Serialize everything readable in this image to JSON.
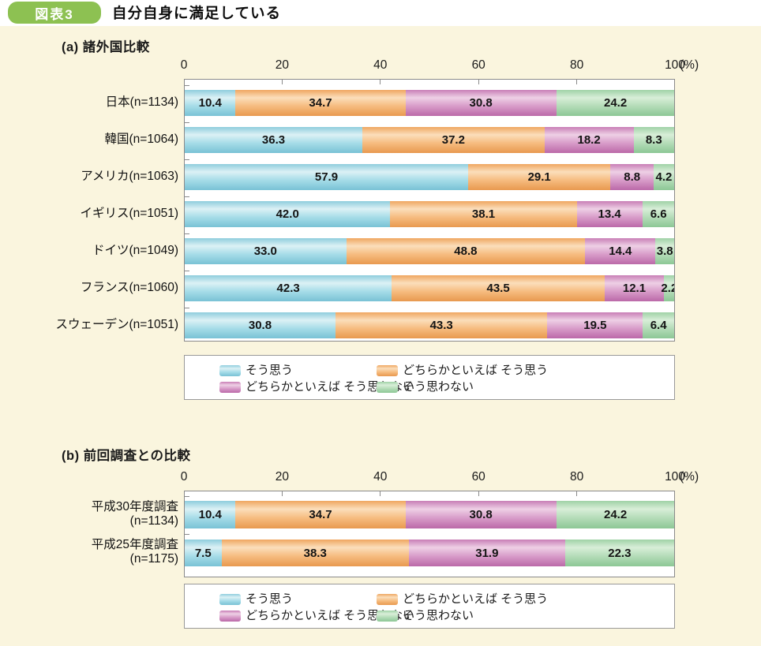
{
  "header": {
    "badge": "図表3",
    "title": "自分自身に満足している"
  },
  "colors": {
    "background": "#faf5de",
    "badge_green": "#8dc152",
    "plot_border": "#8a8a8a",
    "series": [
      {
        "label": "そう思う",
        "top": "#8ecddd",
        "light": "#dcf1f5",
        "base": "#a6dce8",
        "dark": "#79c2d5"
      },
      {
        "label": "どちらかといえば そう思う",
        "top": "#efa660",
        "light": "#fbdebb",
        "base": "#f6bc80",
        "dark": "#e8994f"
      },
      {
        "label": "どちらかといえば そう思わない",
        "top": "#c87eb6",
        "light": "#eed0e5",
        "base": "#d89cc9",
        "dark": "#bb69a8"
      },
      {
        "label": "そう思わない",
        "top": "#9fd2a6",
        "light": "#d8eed8",
        "base": "#b4dcb8",
        "dark": "#8cc795"
      }
    ]
  },
  "legend": {
    "items": [
      "そう思う",
      "どちらかといえば そう思う",
      "どちらかといえば そう思わない",
      "そう思わない"
    ]
  },
  "chart_data": [
    {
      "type": "bar",
      "stacked": true,
      "orientation": "horizontal",
      "title": "(a) 諸外国比較",
      "unit": "(%)",
      "x_ticks": [
        0,
        20,
        40,
        60,
        80,
        100
      ],
      "xlim": [
        0,
        100
      ],
      "grid": false,
      "legend_position": "bottom-box",
      "series_labels": [
        "そう思う",
        "どちらかといえば そう思う",
        "どちらかといえば そう思わない",
        "そう思わない"
      ],
      "categories": [
        [
          "日本(n=1134)"
        ],
        [
          "韓国(n=1064)"
        ],
        [
          "アメリカ(n=1063)"
        ],
        [
          "イギリス(n=1051)"
        ],
        [
          "ドイツ(n=1049)"
        ],
        [
          "フランス(n=1060)"
        ],
        [
          "スウェーデン(n=1051)"
        ]
      ],
      "rows": [
        [
          10.4,
          34.7,
          30.8,
          24.2
        ],
        [
          36.3,
          37.2,
          18.2,
          8.3
        ],
        [
          57.9,
          29.1,
          8.8,
          4.2
        ],
        [
          42.0,
          38.1,
          13.4,
          6.6
        ],
        [
          33.0,
          48.8,
          14.4,
          3.8
        ],
        [
          42.3,
          43.5,
          12.1,
          2.2
        ],
        [
          30.8,
          43.3,
          19.5,
          6.4
        ]
      ]
    },
    {
      "type": "bar",
      "stacked": true,
      "orientation": "horizontal",
      "title": "(b) 前回調査との比較",
      "unit": "(%)",
      "x_ticks": [
        0,
        20,
        40,
        60,
        80,
        100
      ],
      "xlim": [
        0,
        100
      ],
      "grid": false,
      "legend_position": "bottom-box",
      "series_labels": [
        "そう思う",
        "どちらかといえば そう思う",
        "どちらかといえば そう思わない",
        "そう思わない"
      ],
      "categories": [
        [
          "平成30年度調査",
          "(n=1134)"
        ],
        [
          "平成25年度調査",
          "(n=1175)"
        ]
      ],
      "rows": [
        [
          10.4,
          34.7,
          30.8,
          24.2
        ],
        [
          7.5,
          38.3,
          31.9,
          22.3
        ]
      ]
    }
  ]
}
